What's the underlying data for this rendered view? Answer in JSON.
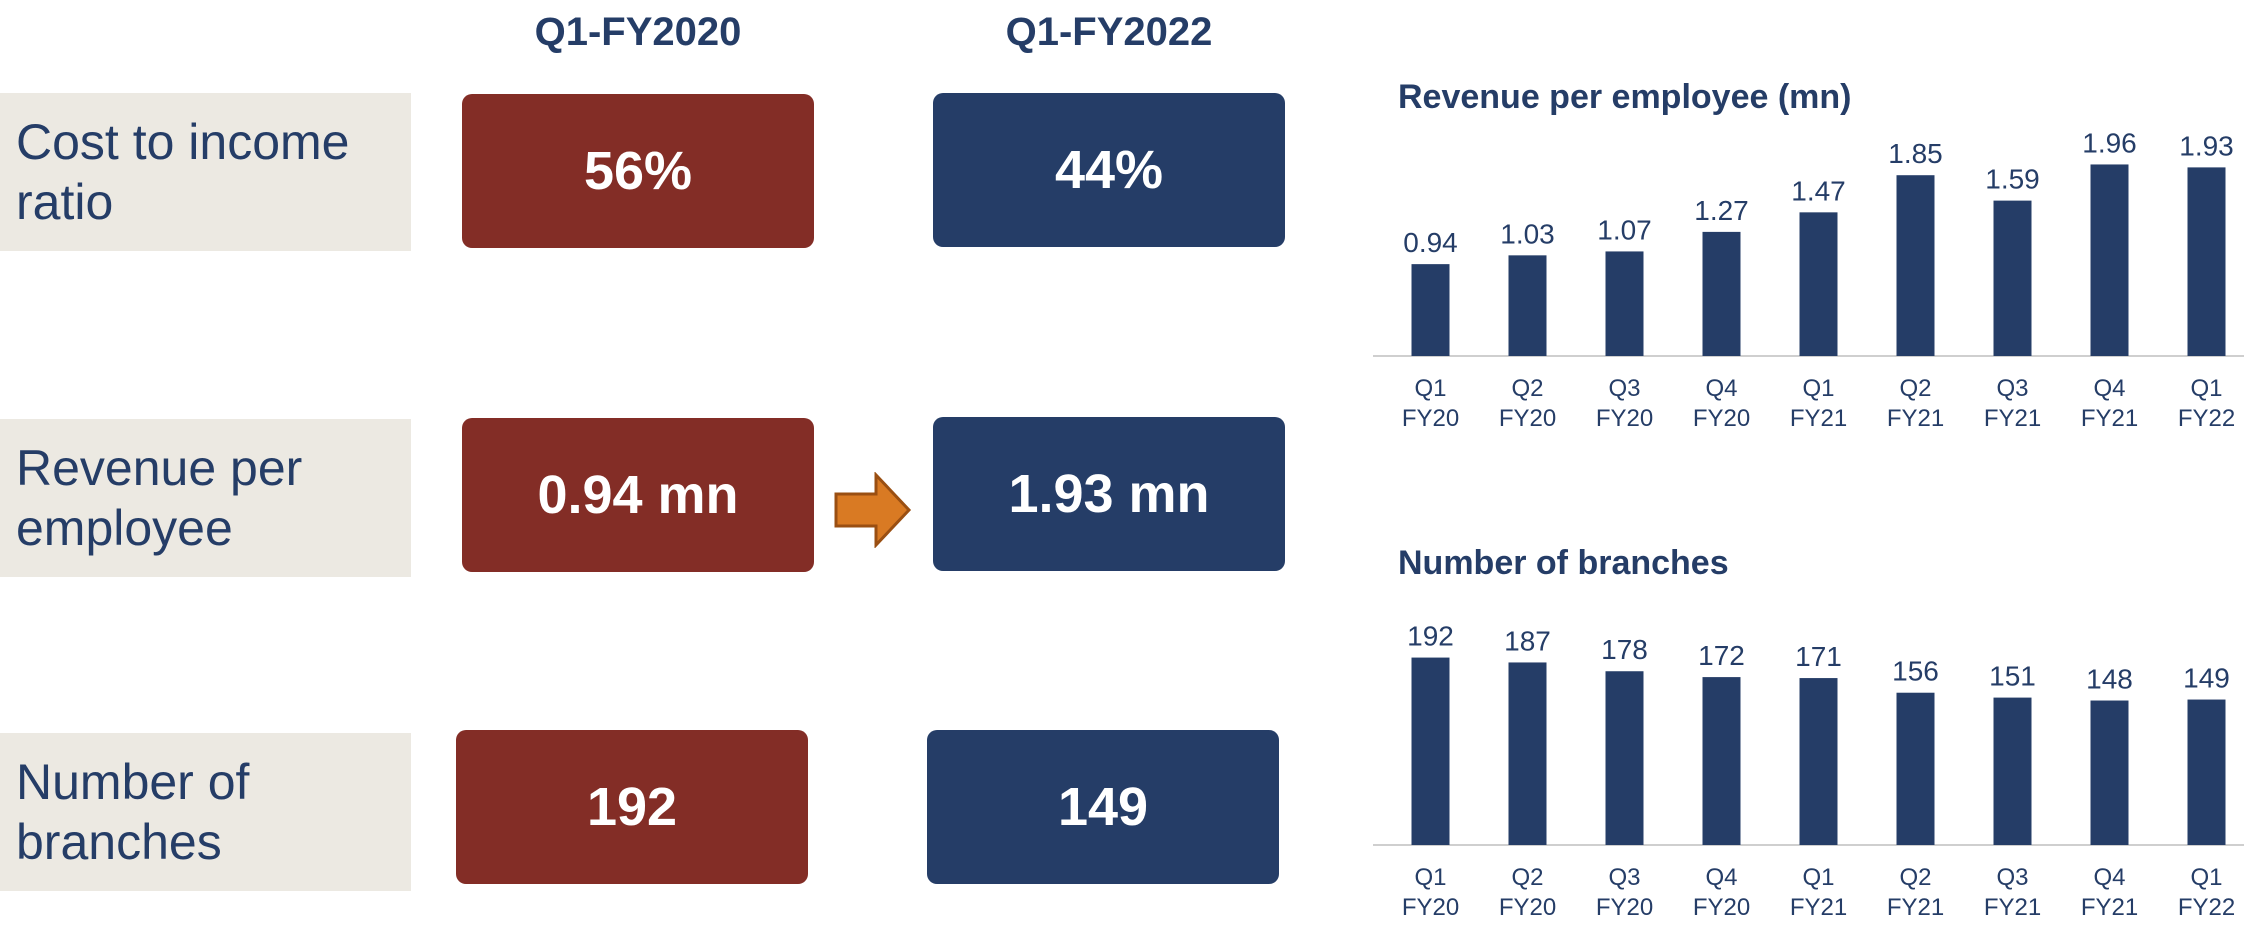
{
  "colors": {
    "old": "#832d26",
    "new": "#253d67",
    "label_bg": "#ece9e2",
    "arrow": "#d97a23",
    "bar": "#253d67"
  },
  "columns": {
    "left": "Q1-FY2020",
    "right": "Q1-FY2022"
  },
  "metrics": [
    {
      "label": "Cost to income\nratio",
      "old_value": "56%",
      "new_value": "44%"
    },
    {
      "label": "Revenue per\nemployee",
      "old_value": "0.94 mn",
      "new_value": "1.93 mn"
    },
    {
      "label": "Number of\nbranches",
      "old_value": "192",
      "new_value": "149"
    }
  ],
  "arrow_icon": "right-arrow-icon",
  "chart_data": [
    {
      "type": "bar",
      "title": "Revenue per employee (mn)",
      "categories": [
        "Q1\nFY20",
        "Q2\nFY20",
        "Q3\nFY20",
        "Q4\nFY20",
        "Q1\nFY21",
        "Q2\nFY21",
        "Q3\nFY21",
        "Q4\nFY21",
        "Q1\nFY22"
      ],
      "values": [
        0.94,
        1.03,
        1.07,
        1.27,
        1.47,
        1.85,
        1.59,
        1.96,
        1.93
      ],
      "ylim": [
        0,
        2.2
      ],
      "grid": false,
      "legend": false,
      "data_labels": true
    },
    {
      "type": "bar",
      "title": "Number of branches",
      "categories": [
        "Q1\nFY20",
        "Q2\nFY20",
        "Q3\nFY20",
        "Q4\nFY20",
        "Q1\nFY21",
        "Q2\nFY21",
        "Q3\nFY21",
        "Q4\nFY21",
        "Q1\nFY22"
      ],
      "values": [
        192,
        187,
        178,
        172,
        171,
        156,
        151,
        148,
        149
      ],
      "ylim": [
        0,
        210
      ],
      "grid": false,
      "legend": false,
      "data_labels": true
    }
  ]
}
